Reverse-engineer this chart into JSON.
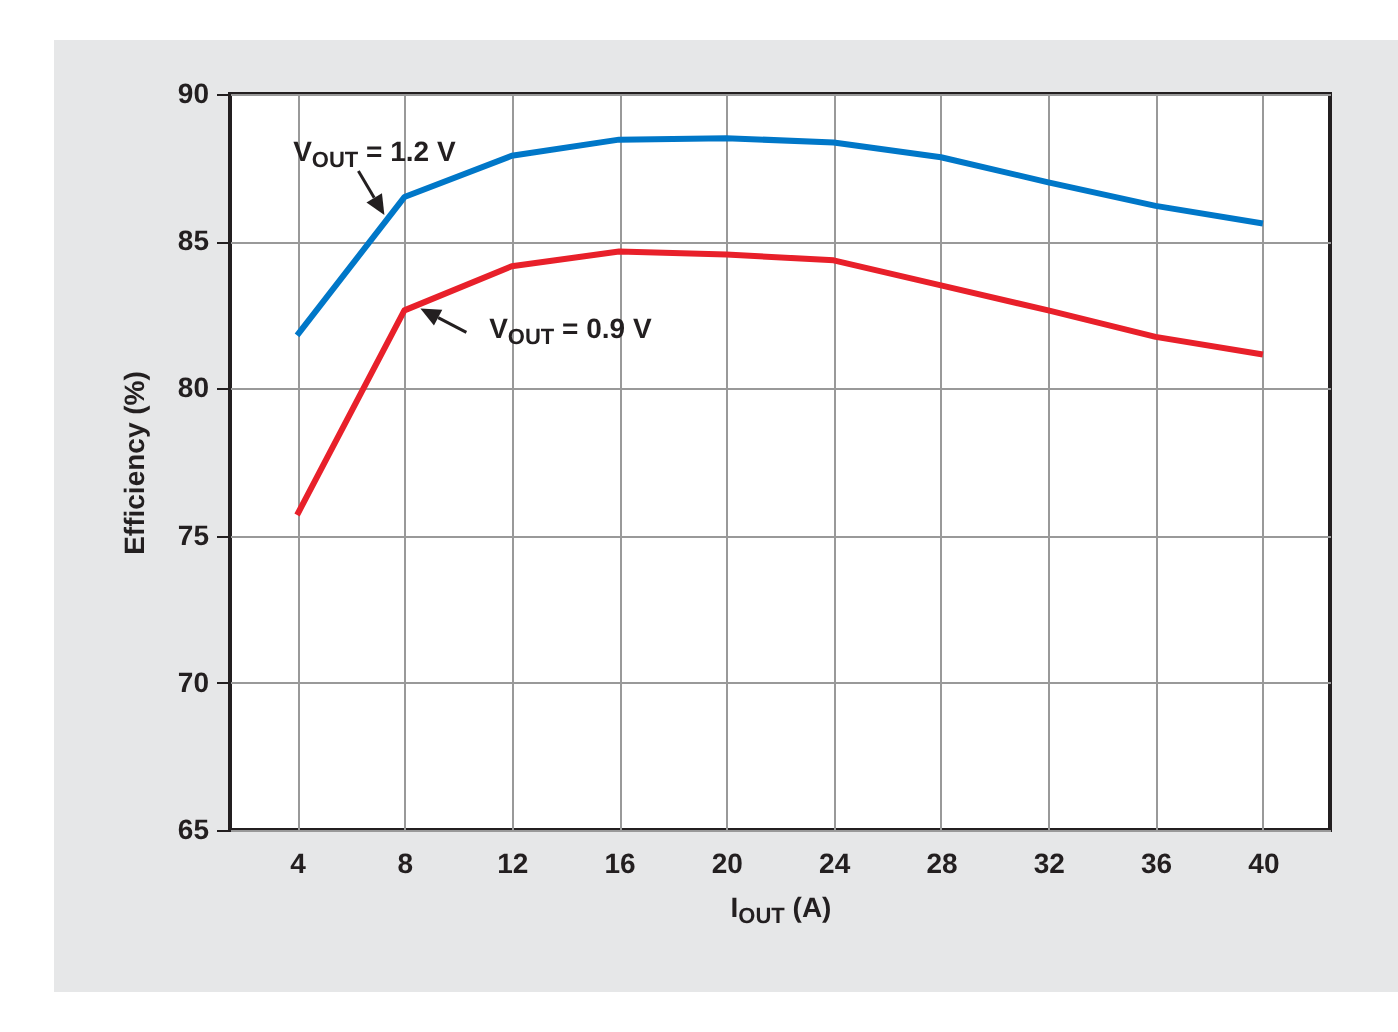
{
  "chart_data": {
    "type": "line",
    "xlabel": "I$_{OUT}$ (A)",
    "ylabel": "Efficiency (%)",
    "x": [
      4,
      8,
      12,
      16,
      20,
      24,
      28,
      32,
      36,
      40
    ],
    "series": [
      {
        "color": "#0077c8",
        "values": [
          81.8,
          86.5,
          87.9,
          88.45,
          88.5,
          88.35,
          87.85,
          87.0,
          86.2,
          85.6
        ]
      },
      {
        "color": "#e8202a",
        "values": [
          75.7,
          82.65,
          84.15,
          84.65,
          84.55,
          84.35,
          83.5,
          82.65,
          81.75,
          81.15
        ]
      }
    ],
    "xlim": [
      1.5,
      42.5
    ],
    "xticks": [
      4,
      8,
      12,
      16,
      20,
      24,
      28,
      32,
      36,
      40
    ],
    "ylim": [
      65,
      90
    ],
    "yticks": [
      65,
      70,
      75,
      80,
      85,
      90
    ],
    "grid": true,
    "line_style": "solid",
    "annotations": [
      {
        "text": "V$_{OUT}$ = 1.2 V",
        "x": 8,
        "y": 86.5
      },
      {
        "text": "V$_{OUT}$ = 0.9 V",
        "x": 8,
        "y": 82.65
      }
    ]
  }
}
